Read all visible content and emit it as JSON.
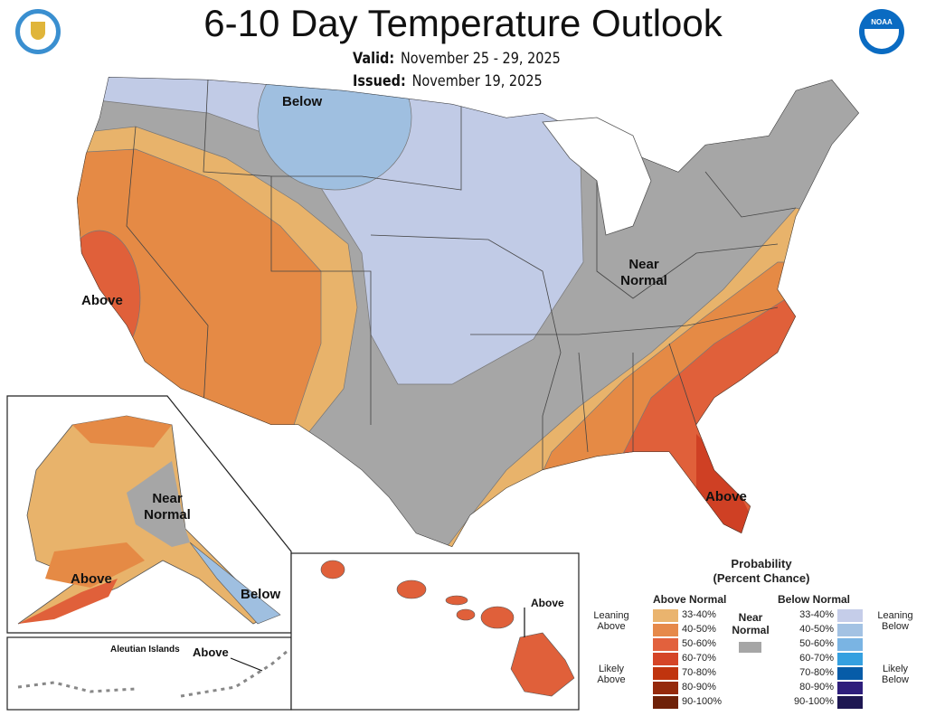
{
  "header": {
    "title": "6-10 Day Temperature Outlook",
    "valid_label": "Valid:",
    "valid_value": "November 25 - 29, 2025",
    "issued_label": "Issued:",
    "issued_value": "November 19, 2025",
    "logos": {
      "left": "Department of Commerce seal",
      "right": "NOAA",
      "right_text": "NOAA"
    }
  },
  "map": {
    "labels": {
      "conus_below": "Below",
      "conus_near": "Near Normal",
      "conus_above_west": "Above",
      "conus_above_se": "Above",
      "ak_near": "Near Normal",
      "ak_above": "Above",
      "ak_below": "Below",
      "aleutian_title": "Aleutian Islands",
      "aleutian_above": "Above",
      "hawaii_above": "Above"
    },
    "colors": {
      "near": "#a6a6a6",
      "above_33": "#e8b36b",
      "above_40": "#e58a45",
      "above_50": "#e0603a",
      "above_60": "#cf4024",
      "below_33": "#c1cbe6",
      "below_40": "#9fbfe0"
    }
  },
  "legend": {
    "title_line1": "Probability",
    "title_line2": "(Percent Chance)",
    "above_header": "Above Normal",
    "below_header": "Below Normal",
    "near_label_line1": "Near",
    "near_label_line2": "Normal",
    "near_color": "#a6a6a6",
    "leaning_above": "Leaning Above",
    "likely_above": "Likely Above",
    "leaning_below": "Leaning Below",
    "likely_below": "Likely Below",
    "above": [
      {
        "range": "33-40%",
        "color": "#eab46e"
      },
      {
        "range": "40-50%",
        "color": "#e6894a"
      },
      {
        "range": "50-60%",
        "color": "#e2613d"
      },
      {
        "range": "60-70%",
        "color": "#d54527"
      },
      {
        "range": "70-80%",
        "color": "#c0340e"
      },
      {
        "range": "80-90%",
        "color": "#95290b"
      },
      {
        "range": "90-100%",
        "color": "#6f2108"
      }
    ],
    "below": [
      {
        "range": "33-40%",
        "color": "#c5cde9"
      },
      {
        "range": "40-50%",
        "color": "#a3c2e3"
      },
      {
        "range": "50-60%",
        "color": "#7ab4e3"
      },
      {
        "range": "60-70%",
        "color": "#35a0e0"
      },
      {
        "range": "70-80%",
        "color": "#075ca8"
      },
      {
        "range": "80-90%",
        "color": "#2e1e7c"
      },
      {
        "range": "90-100%",
        "color": "#1e1752"
      }
    ]
  }
}
